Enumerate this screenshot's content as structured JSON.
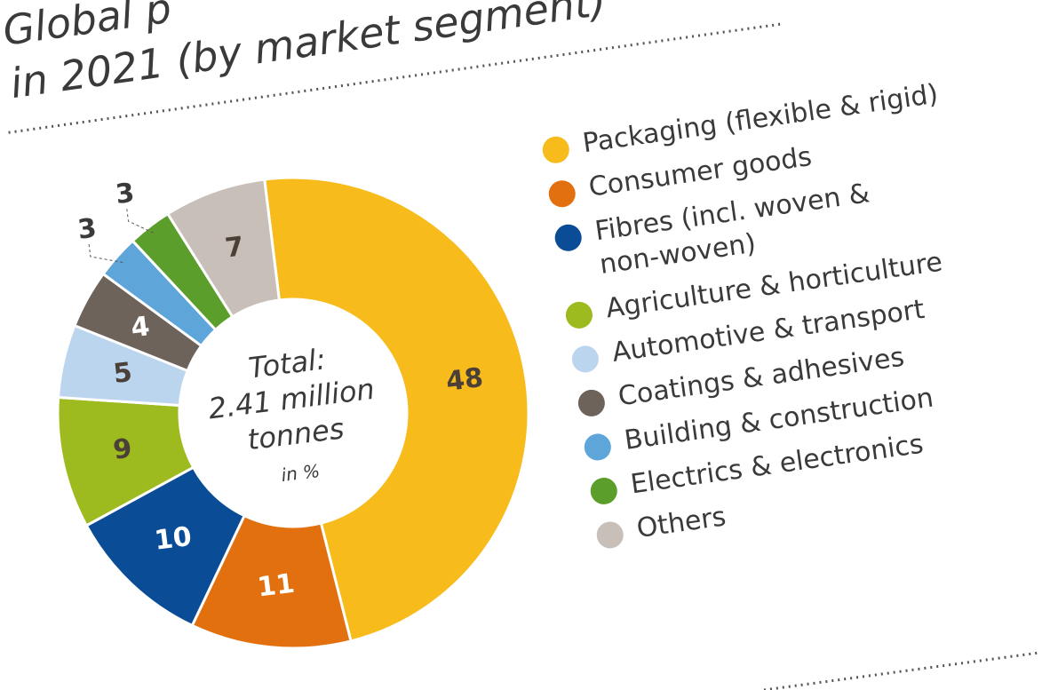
{
  "chart_data": {
    "type": "donut",
    "title": [
      "Global p",
      "in 2021 (by market segment)"
    ],
    "center_text": [
      "Total:",
      "2.41 million",
      "tonnes",
      "in %"
    ],
    "categories": [
      "Packaging (flexible & rigid)",
      "Consumer goods",
      "Fibres (incl. woven & non-woven)",
      "Agriculture & horticulture",
      "Automotive & transport",
      "Coatings & adhesives",
      "Building & construction",
      "Electrics & electronics",
      "Others"
    ],
    "values": [
      48,
      11,
      10,
      9,
      5,
      4,
      3,
      3,
      7
    ],
    "colors": [
      "#f8bb1c",
      "#e2700f",
      "#0b4c97",
      "#9dbb1e",
      "#bcd5ee",
      "#6d635b",
      "#5ea6da",
      "#5c9e2b",
      "#c8bfb9"
    ]
  }
}
